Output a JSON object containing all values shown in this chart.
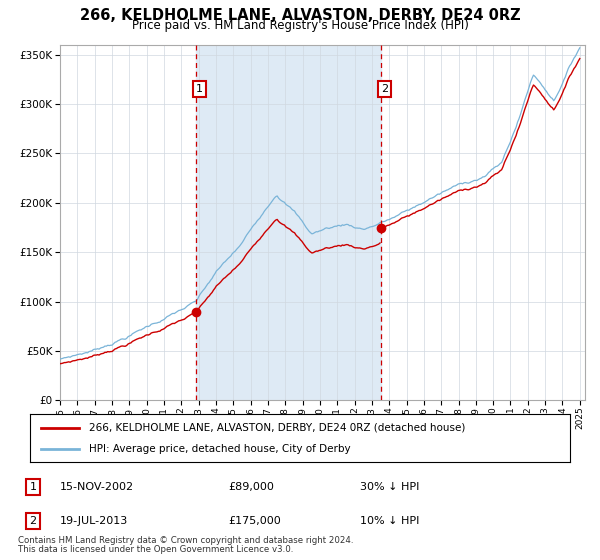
{
  "title": "266, KELDHOLME LANE, ALVASTON, DERBY, DE24 0RZ",
  "subtitle": "Price paid vs. HM Land Registry's House Price Index (HPI)",
  "legend_line1": "266, KELDHOLME LANE, ALVASTON, DERBY, DE24 0RZ (detached house)",
  "legend_line2": "HPI: Average price, detached house, City of Derby",
  "transaction1": {
    "label": "1",
    "date": "15-NOV-2002",
    "price": 89000,
    "note": "30% ↓ HPI",
    "year": 2002.87
  },
  "transaction2": {
    "label": "2",
    "date": "19-JUL-2013",
    "price": 175000,
    "note": "10% ↓ HPI",
    "year": 2013.54
  },
  "hpi_color": "#7ab4d8",
  "price_color": "#cc0000",
  "vline_color": "#cc0000",
  "shading_color": "#deeaf5",
  "footer1": "Contains HM Land Registry data © Crown copyright and database right 2024.",
  "footer2": "This data is licensed under the Open Government Licence v3.0.",
  "ylim": [
    0,
    360000
  ],
  "yticks": [
    0,
    50000,
    100000,
    150000,
    200000,
    250000,
    300000,
    350000
  ]
}
